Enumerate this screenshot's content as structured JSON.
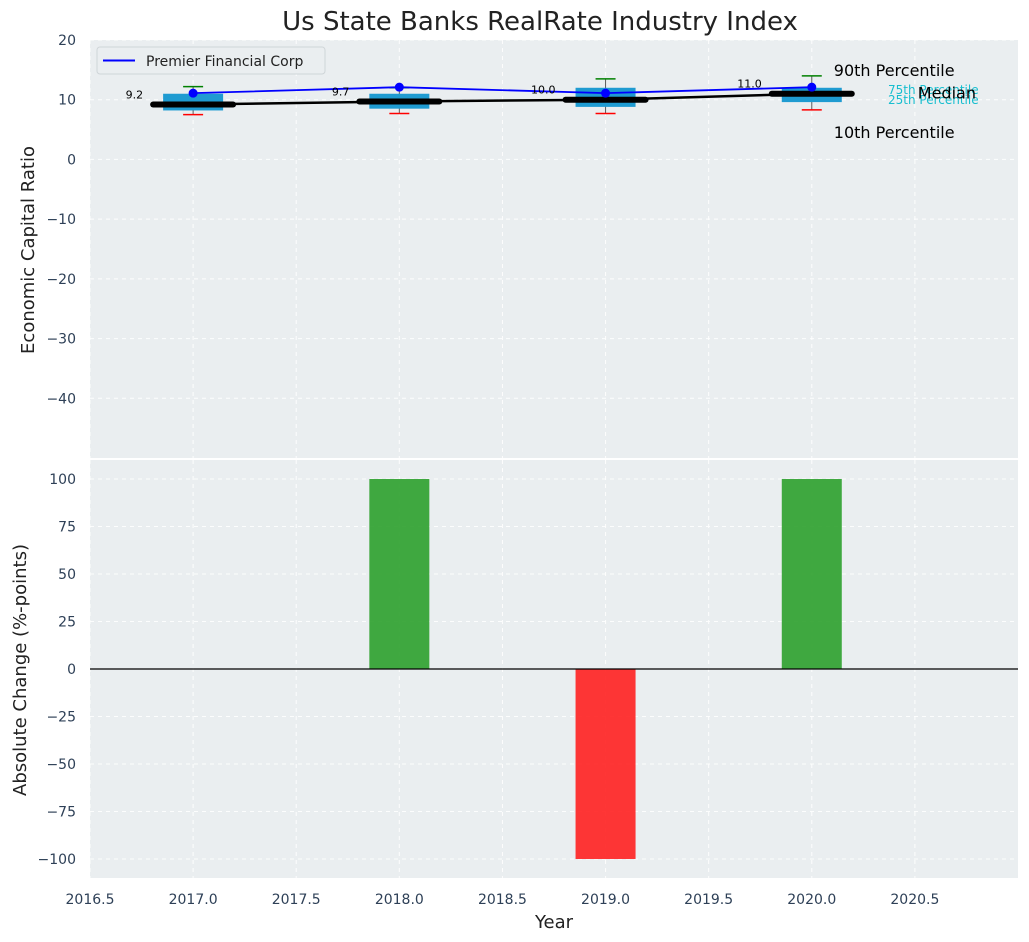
{
  "chart_data": [
    {
      "type": "box",
      "title": "Us State Banks RealRate Industry Index",
      "xlabel": "",
      "ylabel": "Economic Capital Ratio",
      "ylim": [
        -50,
        20
      ],
      "yticks": [
        20,
        10,
        0,
        -10,
        -20,
        -30,
        -40
      ],
      "x": [
        2017,
        2018,
        2019,
        2020
      ],
      "boxes": [
        {
          "x": 2017,
          "p10": 7.5,
          "p25": 8.2,
          "median": 9.2,
          "p75": 11.0,
          "p90": 12.2
        },
        {
          "x": 2018,
          "p10": 7.7,
          "p25": 8.5,
          "median": 9.7,
          "p75": 11.0,
          "p90": 12.0
        },
        {
          "x": 2019,
          "p10": 7.7,
          "p25": 8.8,
          "median": 10.0,
          "p75": 12.0,
          "p90": 13.5
        },
        {
          "x": 2020,
          "p10": 8.3,
          "p25": 9.6,
          "median": 11.0,
          "p75": 12.0,
          "p90": 14.0
        }
      ],
      "median_labels": [
        "9.2",
        "9.7",
        "10.0",
        "11.0"
      ],
      "series": [
        {
          "name": "Premier Financial Corp",
          "color": "#0000ff",
          "values": [
            11.1,
            12.1,
            11.1,
            12.1
          ]
        },
        {
          "name": "Median",
          "color": "#000000",
          "values": [
            9.2,
            9.7,
            10.0,
            11.0
          ]
        }
      ],
      "legend": {
        "entries": [
          "Premier Financial Corp"
        ],
        "location": "top-left"
      },
      "percentile_labels": {
        "p90": "90th Percentile",
        "median": "Median",
        "p10": "10th Percentile",
        "p75": "75th Percentile",
        "p25": "25th Percentile"
      },
      "colors": {
        "box": "#1f9bd1",
        "p90_whisker": "#008000",
        "p10_whisker": "#ff0000",
        "median_line": "#000000",
        "cyan_text": "#17becf"
      }
    },
    {
      "type": "bar",
      "xlabel": "Year",
      "ylabel": "Absolute Change (%-points)",
      "ylim": [
        -110,
        110
      ],
      "yticks": [
        100,
        75,
        50,
        25,
        0,
        -25,
        -50,
        -75,
        -100
      ],
      "xlim": [
        2016.5,
        2021.0
      ],
      "xticks": [
        "2016.5",
        "2017.0",
        "2017.5",
        "2018.0",
        "2018.5",
        "2019.0",
        "2019.5",
        "2020.0",
        "2020.5"
      ],
      "x": [
        2018,
        2019,
        2020
      ],
      "values": [
        100,
        -100,
        100
      ],
      "colors": {
        "positive": "#2ca02c",
        "negative": "#ff2020"
      }
    }
  ]
}
